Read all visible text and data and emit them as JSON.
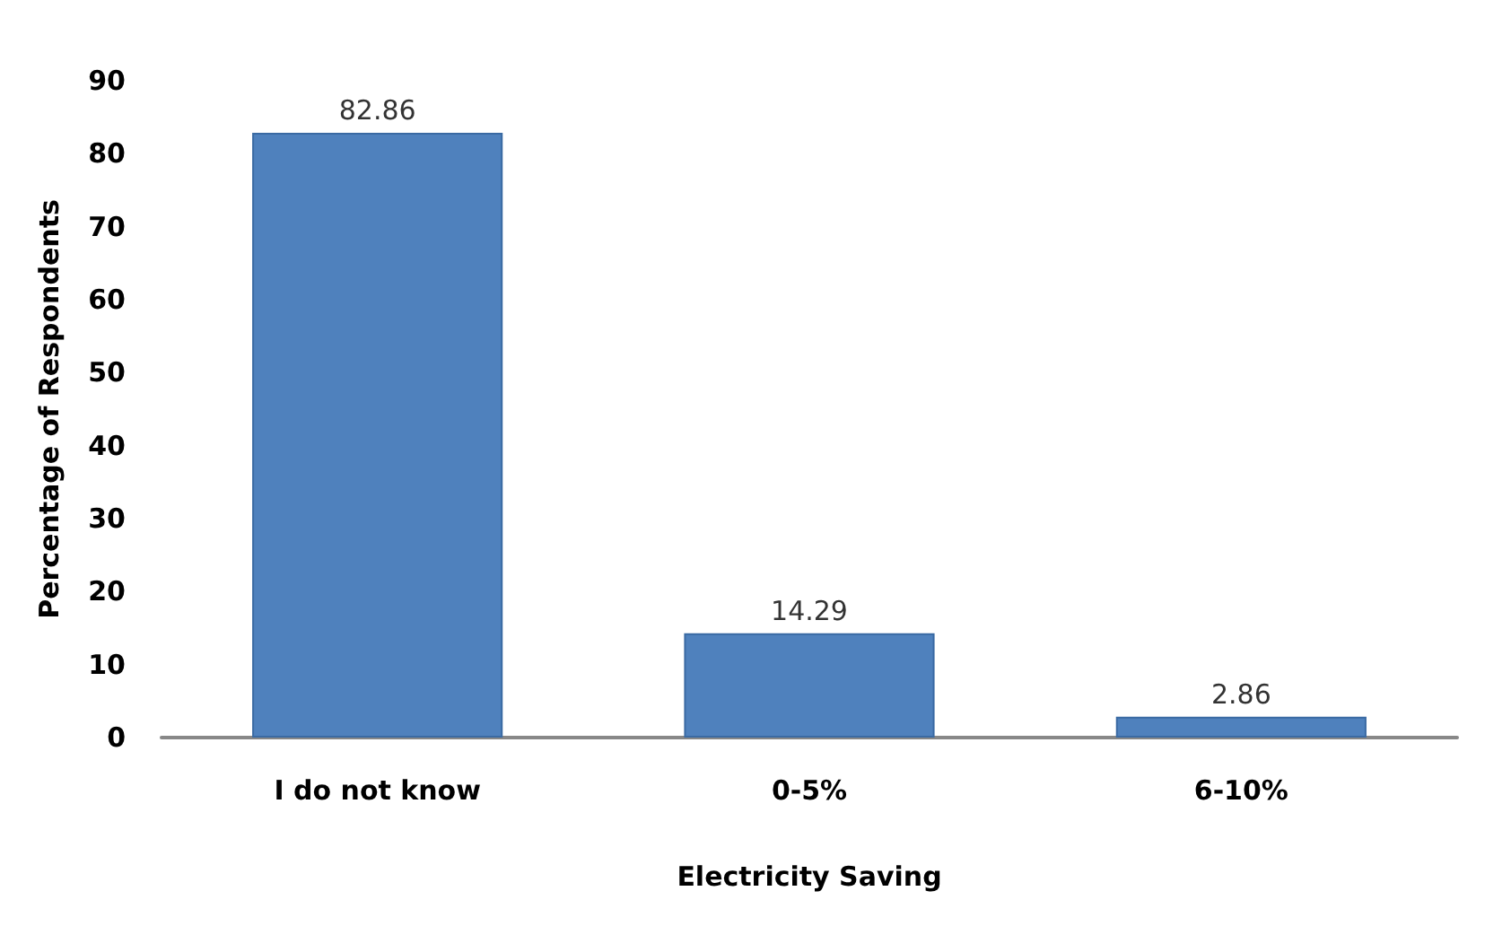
{
  "chart_data": {
    "type": "bar",
    "xlabel": "Electricity Saving",
    "ylabel": "Percentage of Respondents",
    "categories": [
      "I do not know",
      "0-5%",
      "6-10%"
    ],
    "values": [
      82.86,
      14.29,
      2.86
    ],
    "color": "#4f81bd",
    "ylim": [
      0,
      90
    ],
    "yticks": [
      0,
      10,
      20,
      30,
      40,
      50,
      60,
      70,
      80,
      90
    ],
    "grid": false,
    "data_labels": true
  }
}
